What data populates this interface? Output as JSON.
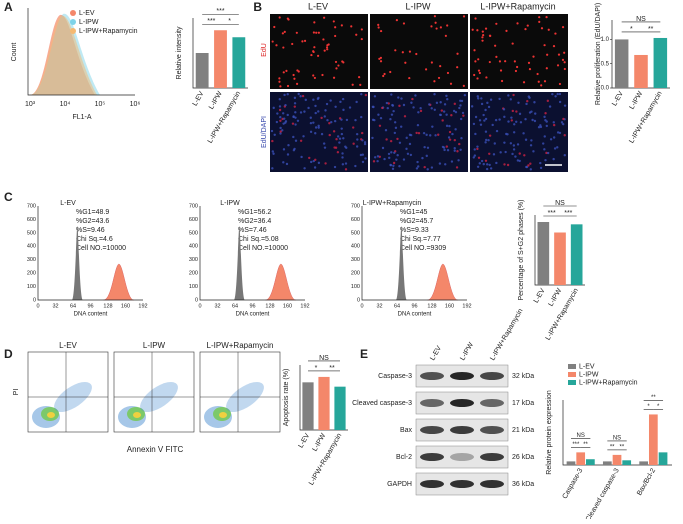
{
  "panels": {
    "A": {
      "label": "A",
      "legend": [
        "L-EV",
        "L-IPW",
        "L-IPW+Rapamycin"
      ],
      "y_label": "Count",
      "x_label": "FL1-A",
      "x_ticks": [
        "10³",
        "10⁴",
        "10⁵",
        "10⁶"
      ]
    },
    "B": {
      "label": "B",
      "columns": [
        "L-EV",
        "L-IPW",
        "L-IPW+Rapamycin"
      ],
      "rows": [
        "EdU",
        "EdU/DAPI"
      ]
    },
    "C": {
      "label": "C",
      "x_label": "DNA content",
      "x_ticks": [
        0,
        32,
        64,
        96,
        128,
        160,
        192
      ],
      "y_ticks": [
        0,
        100,
        200,
        300,
        400,
        500,
        600,
        700
      ],
      "plots": [
        {
          "title": "L-EV",
          "stats": [
            "%G1=48.9",
            "%G2=43.6",
            "%S=9.46",
            "Chi Sq.=4.6",
            "Cell NO.=10000"
          ]
        },
        {
          "title": "L-IPW",
          "stats": [
            "%G1=56.2",
            "%G2=36.4",
            "%S=7.46",
            "Chi Sq.=5.08",
            "Cell NO.=10000"
          ]
        },
        {
          "title": "L-IPW+Rapamycin",
          "stats": [
            "%G1=45",
            "%G2=45.7",
            "%S=9.33",
            "Chi Sq.=7.77",
            "Cell NO.=9309"
          ]
        }
      ]
    },
    "D": {
      "label": "D",
      "titles": [
        "L-EV",
        "L-IPW",
        "L-IPW+Rapamycin"
      ],
      "y_label": "PI",
      "x_label": "Annexin V FITC"
    },
    "E": {
      "label": "E",
      "lanes": [
        "L-EV",
        "L-IPW",
        "L-IPW+Rapamycin"
      ],
      "bands": [
        {
          "name": "Caspase-3",
          "size": "32 kDa"
        },
        {
          "name": "Cleaved caspase-3",
          "size": "17 kDa"
        },
        {
          "name": "Bax",
          "size": "21 kDa"
        },
        {
          "name": "Bcl-2",
          "size": "26 kDa"
        },
        {
          "name": "GAPDH",
          "size": "36 kDa"
        }
      ]
    }
  },
  "chart_data": [
    {
      "type": "bar",
      "y_label": "Relative intensity",
      "categories": [
        "L-EV",
        "L-IPW",
        "L-IPW+Rapamycin"
      ],
      "values": [
        20,
        33,
        29
      ],
      "colors": [
        "#808080",
        "#f4876a",
        "#26a69a"
      ],
      "ylim": [
        0,
        40
      ],
      "annotations": [
        "***",
        "***",
        "*"
      ]
    },
    {
      "type": "bar",
      "y_label": "Relative proliferation (EdU/DAPI)",
      "categories": [
        "L-EV",
        "L-IPW",
        "L-IPW+Rapamycin"
      ],
      "values": [
        1.0,
        0.68,
        1.03
      ],
      "colors": [
        "#808080",
        "#f4876a",
        "#26a69a"
      ],
      "ylim": [
        0,
        1.4
      ],
      "yticks": [
        {
          "value": 0,
          "label": "0.0"
        },
        {
          "value": 0.5,
          "label": "0.5"
        },
        {
          "value": 1,
          "label": "1.0"
        }
      ],
      "annotations": [
        "NS",
        "*",
        "**"
      ]
    },
    {
      "type": "bar",
      "y_label": "Percentage of S+G2 phases (%)",
      "categories": [
        "L-EV",
        "L-IPW",
        "L-IPW+Rapamycin"
      ],
      "values": [
        54,
        45,
        52
      ],
      "colors": [
        "#808080",
        "#f4876a",
        "#26a69a"
      ],
      "ylim": [
        0,
        60
      ],
      "annotations": [
        "NS",
        "***",
        "***"
      ]
    },
    {
      "type": "bar",
      "y_label": "Apoptosis rate (%)",
      "categories": [
        "L-EV",
        "L-IPW",
        "L-IPW+Rapamycin"
      ],
      "values": [
        2.2,
        2.45,
        2.0
      ],
      "colors": [
        "#808080",
        "#f4876a",
        "#26a69a"
      ],
      "ylim": [
        0,
        3
      ],
      "annotations": [
        "NS",
        "*",
        "**"
      ]
    },
    {
      "type": "grouped-bar",
      "y_label": "Relative protein expression",
      "categories": [
        "Caspase-3",
        "Cleaved caspase-3",
        "Bax/Bcl-2"
      ],
      "ylim": [
        0,
        18
      ],
      "series": [
        {
          "name": "L-EV",
          "color": "#808080",
          "values": [
            1,
            1,
            1
          ]
        },
        {
          "name": "L-IPW",
          "color": "#f4876a",
          "values": [
            3.5,
            2.8,
            14
          ]
        },
        {
          "name": "L-IPW+Rapamycin",
          "color": "#26a69a",
          "values": [
            1.6,
            1.3,
            3.5
          ]
        }
      ],
      "annotations": [
        [
          "NS",
          "***",
          "**"
        ],
        [
          "NS",
          "**",
          "**"
        ],
        [
          "**",
          "*",
          "*"
        ]
      ]
    }
  ]
}
